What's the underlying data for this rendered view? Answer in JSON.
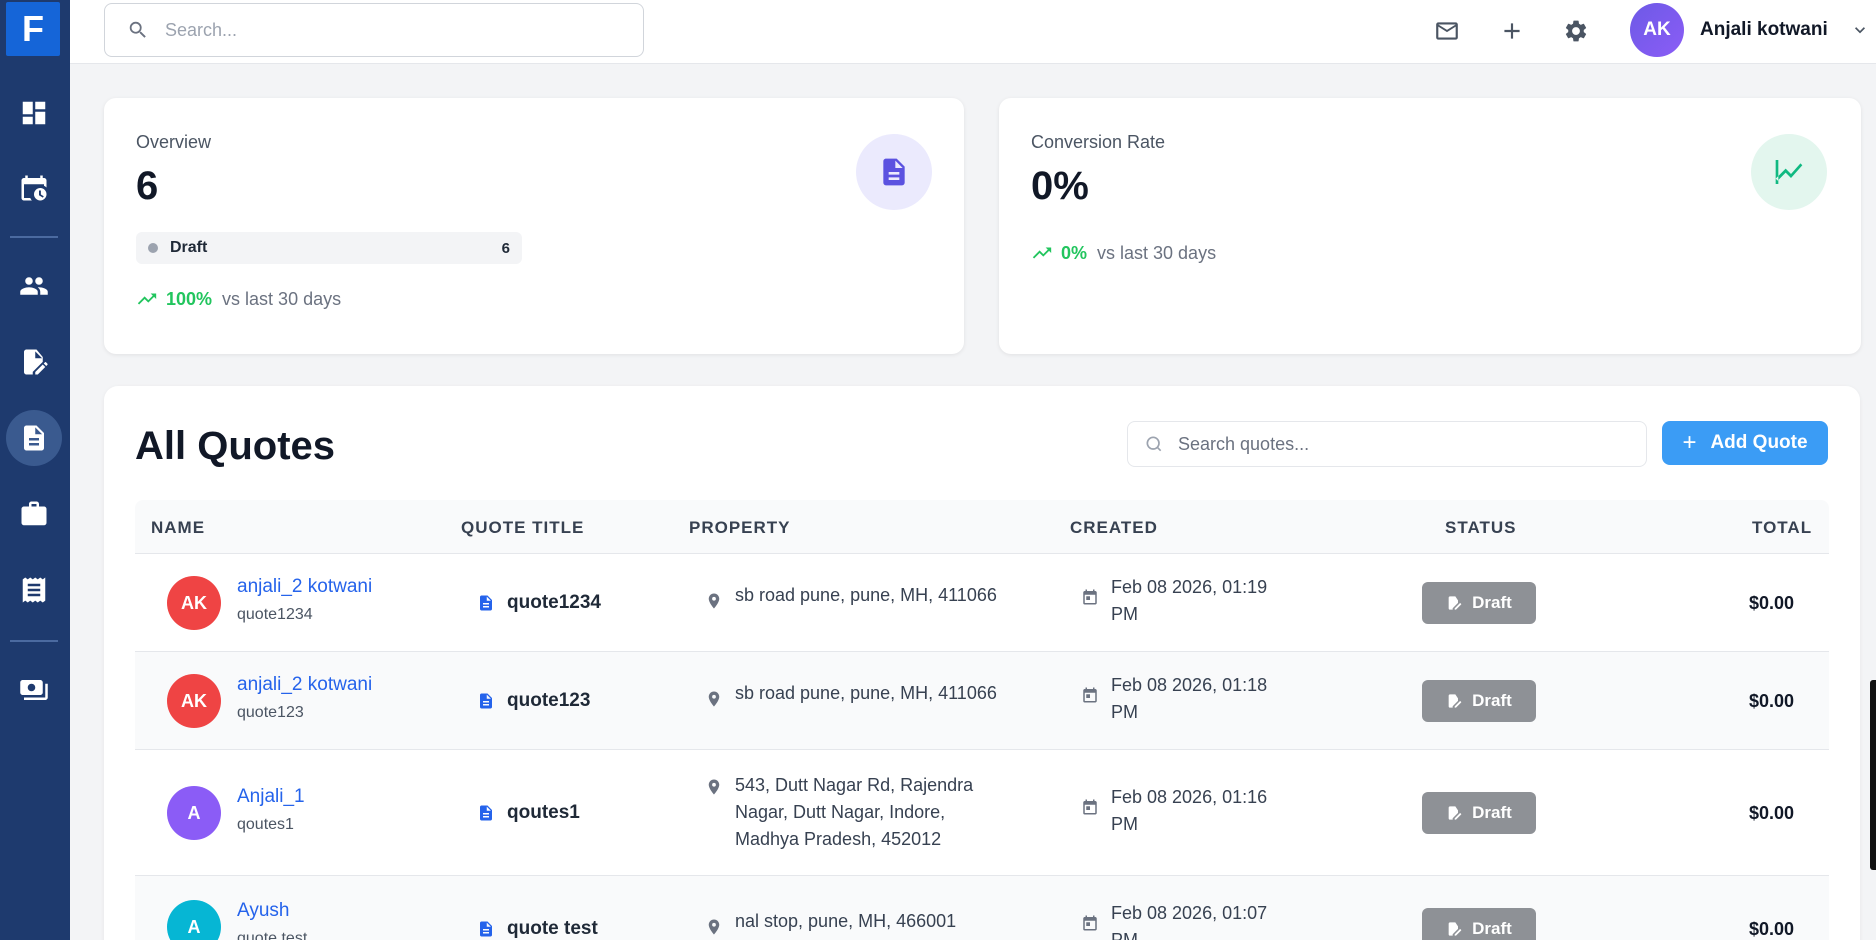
{
  "app": {
    "logo_letter": "F"
  },
  "sidebar": {
    "items": [
      {
        "name": "dashboard",
        "icon": "dashboard-icon"
      },
      {
        "name": "schedule",
        "icon": "calendar-clock-icon"
      },
      {
        "name": "clients",
        "icon": "people-icon"
      },
      {
        "name": "requests",
        "icon": "edit-note-icon"
      },
      {
        "name": "quotes",
        "icon": "document-icon",
        "active": true
      },
      {
        "name": "jobs",
        "icon": "briefcase-icon"
      },
      {
        "name": "invoices",
        "icon": "receipt-icon"
      },
      {
        "name": "payments",
        "icon": "payments-icon"
      }
    ]
  },
  "header": {
    "search_placeholder": "Search...",
    "icons": [
      "mail-icon",
      "plus-icon",
      "settings-icon"
    ],
    "user": {
      "initials": "AK",
      "name": "Anjali kotwani"
    }
  },
  "stats": {
    "overview": {
      "label": "Overview",
      "value": "6",
      "status_label": "Draft",
      "status_count": "6",
      "trend_pct": "100%",
      "trend_text": "vs last 30 days"
    },
    "conversion": {
      "label": "Conversion Rate",
      "value": "0%",
      "trend_pct": "0%",
      "trend_text": "vs last 30 days"
    }
  },
  "quotes": {
    "title": "All Quotes",
    "search_placeholder": "Search quotes...",
    "add_label": "Add Quote",
    "columns": [
      "NAME",
      "QUOTE TITLE",
      "PROPERTY",
      "CREATED",
      "STATUS",
      "TOTAL"
    ],
    "rows": [
      {
        "initials": "AK",
        "avatar_color": "#ef4444",
        "name": "anjali_2 kotwani",
        "sub": "quote1234",
        "title": "quote1234",
        "property": "sb road pune, pune, MH, 411066",
        "created_line1": "Feb 08 2026, 01:19",
        "created_line2": "PM",
        "status": "Draft",
        "total": "$0.00"
      },
      {
        "initials": "AK",
        "avatar_color": "#ef4444",
        "name": "anjali_2 kotwani",
        "sub": "quote123",
        "title": "quote123",
        "property": "sb road pune, pune, MH, 411066",
        "created_line1": "Feb 08 2026, 01:18",
        "created_line2": "PM",
        "status": "Draft",
        "total": "$0.00"
      },
      {
        "initials": "A",
        "avatar_color": "#8b5cf6",
        "name": "Anjali_1",
        "sub": "qoutes1",
        "title": "qoutes1",
        "property_line1": "543, Dutt Nagar Rd, Rajendra",
        "property_line2": "Nagar, Dutt Nagar, Indore,",
        "property_line3": "Madhya Pradesh, 452012",
        "created_line1": "Feb 08 2026, 01:16",
        "created_line2": "PM",
        "status": "Draft",
        "total": "$0.00"
      },
      {
        "initials": "A",
        "avatar_color": "#06b6d4",
        "name": "Ayush",
        "sub": "quote test",
        "title": "quote test",
        "property": "nal stop, pune, MH, 466001",
        "created_line1": "Feb 08 2026, 01:07",
        "created_line2": "PM",
        "status": "Draft",
        "total": "$0.00"
      }
    ]
  }
}
